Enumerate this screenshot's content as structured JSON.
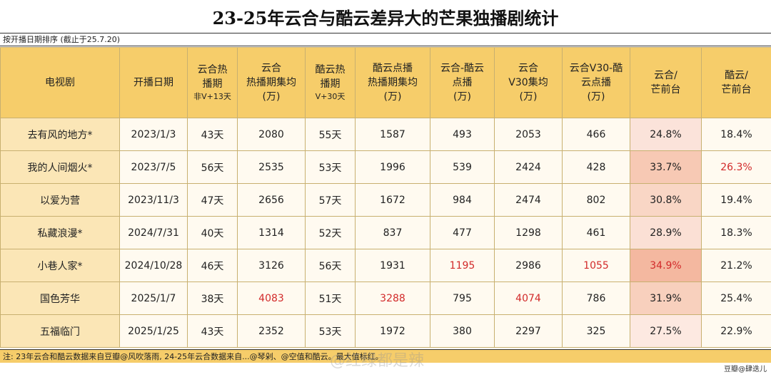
{
  "title": "23-25年云合与酷云差异大的芒果独播剧统计",
  "subtitle": "按开播日期排序 (截止于25.7.20)",
  "headers": [
    {
      "lines": [
        "电视剧"
      ],
      "sub": ""
    },
    {
      "lines": [
        "开播日期"
      ],
      "sub": ""
    },
    {
      "lines": [
        "云合热",
        "播期"
      ],
      "sub": "非V+13天"
    },
    {
      "lines": [
        "云合",
        "热播期集均",
        "(万)"
      ],
      "sub": ""
    },
    {
      "lines": [
        "酷云热",
        "播期"
      ],
      "sub": "V+30天"
    },
    {
      "lines": [
        "酷云点播",
        "热播期集均",
        "(万)"
      ],
      "sub": ""
    },
    {
      "lines": [
        "云合-酷云",
        "点播",
        "(万)"
      ],
      "sub": ""
    },
    {
      "lines": [
        "云合",
        "V30集均",
        "(万)"
      ],
      "sub": ""
    },
    {
      "lines": [
        "云合V30-酷",
        "云点播",
        "(万)"
      ],
      "sub": ""
    },
    {
      "lines": [
        "云合/",
        "芒前台"
      ],
      "sub": ""
    },
    {
      "lines": [
        "酷云/",
        "芒前台"
      ],
      "sub": ""
    }
  ],
  "rows": [
    [
      "去有风的地方*",
      "2023/1/3",
      "43天",
      "2080",
      "55天",
      "1587",
      "493",
      "2053",
      "466",
      "24.8%",
      "18.4%"
    ],
    [
      "我的人间烟火*",
      "2023/7/5",
      "56天",
      "2535",
      "53天",
      "1996",
      "539",
      "2424",
      "428",
      "33.7%",
      "26.3%"
    ],
    [
      "以爱为营",
      "2023/11/3",
      "47天",
      "2656",
      "57天",
      "1672",
      "984",
      "2474",
      "802",
      "30.8%",
      "19.4%"
    ],
    [
      "私藏浪漫*",
      "2024/7/31",
      "40天",
      "1314",
      "52天",
      "837",
      "477",
      "1298",
      "461",
      "28.9%",
      "18.3%"
    ],
    [
      "小巷人家*",
      "2024/10/28",
      "46天",
      "3126",
      "56天",
      "1931",
      "1195",
      "2986",
      "1055",
      "34.9%",
      "21.2%"
    ],
    [
      "国色芳华",
      "2025/1/7",
      "38天",
      "4083",
      "51天",
      "3288",
      "795",
      "4074",
      "786",
      "31.9%",
      "25.4%"
    ],
    [
      "五福临门",
      "2025/1/25",
      "43天",
      "2352",
      "53天",
      "1972",
      "380",
      "2297",
      "325",
      "27.5%",
      "22.9%"
    ]
  ],
  "red_cells": [
    [
      1,
      10
    ],
    [
      4,
      6
    ],
    [
      4,
      8
    ],
    [
      4,
      9
    ],
    [
      5,
      3
    ],
    [
      5,
      5
    ],
    [
      5,
      7
    ]
  ],
  "heat_col9": [
    "#fbe3da",
    "#f7c9b4",
    "#f9d6c5",
    "#fbe0d5",
    "#f4b8a0",
    "#f8d0bd",
    "#fde9e1"
  ],
  "colors": {
    "header_bg": "#f6cd6a",
    "name_bg": "#fbe6b6",
    "red": "#d22a2a"
  },
  "footer": "注: 23年云合和酷云数据来自豆瓣@风吹落雨, 24-25年云合数据来自...@琴剁、@空值和酷云。最大值标红。",
  "watermark": "@红绿都是辣",
  "credit": "豆瓣@肆迭儿"
}
